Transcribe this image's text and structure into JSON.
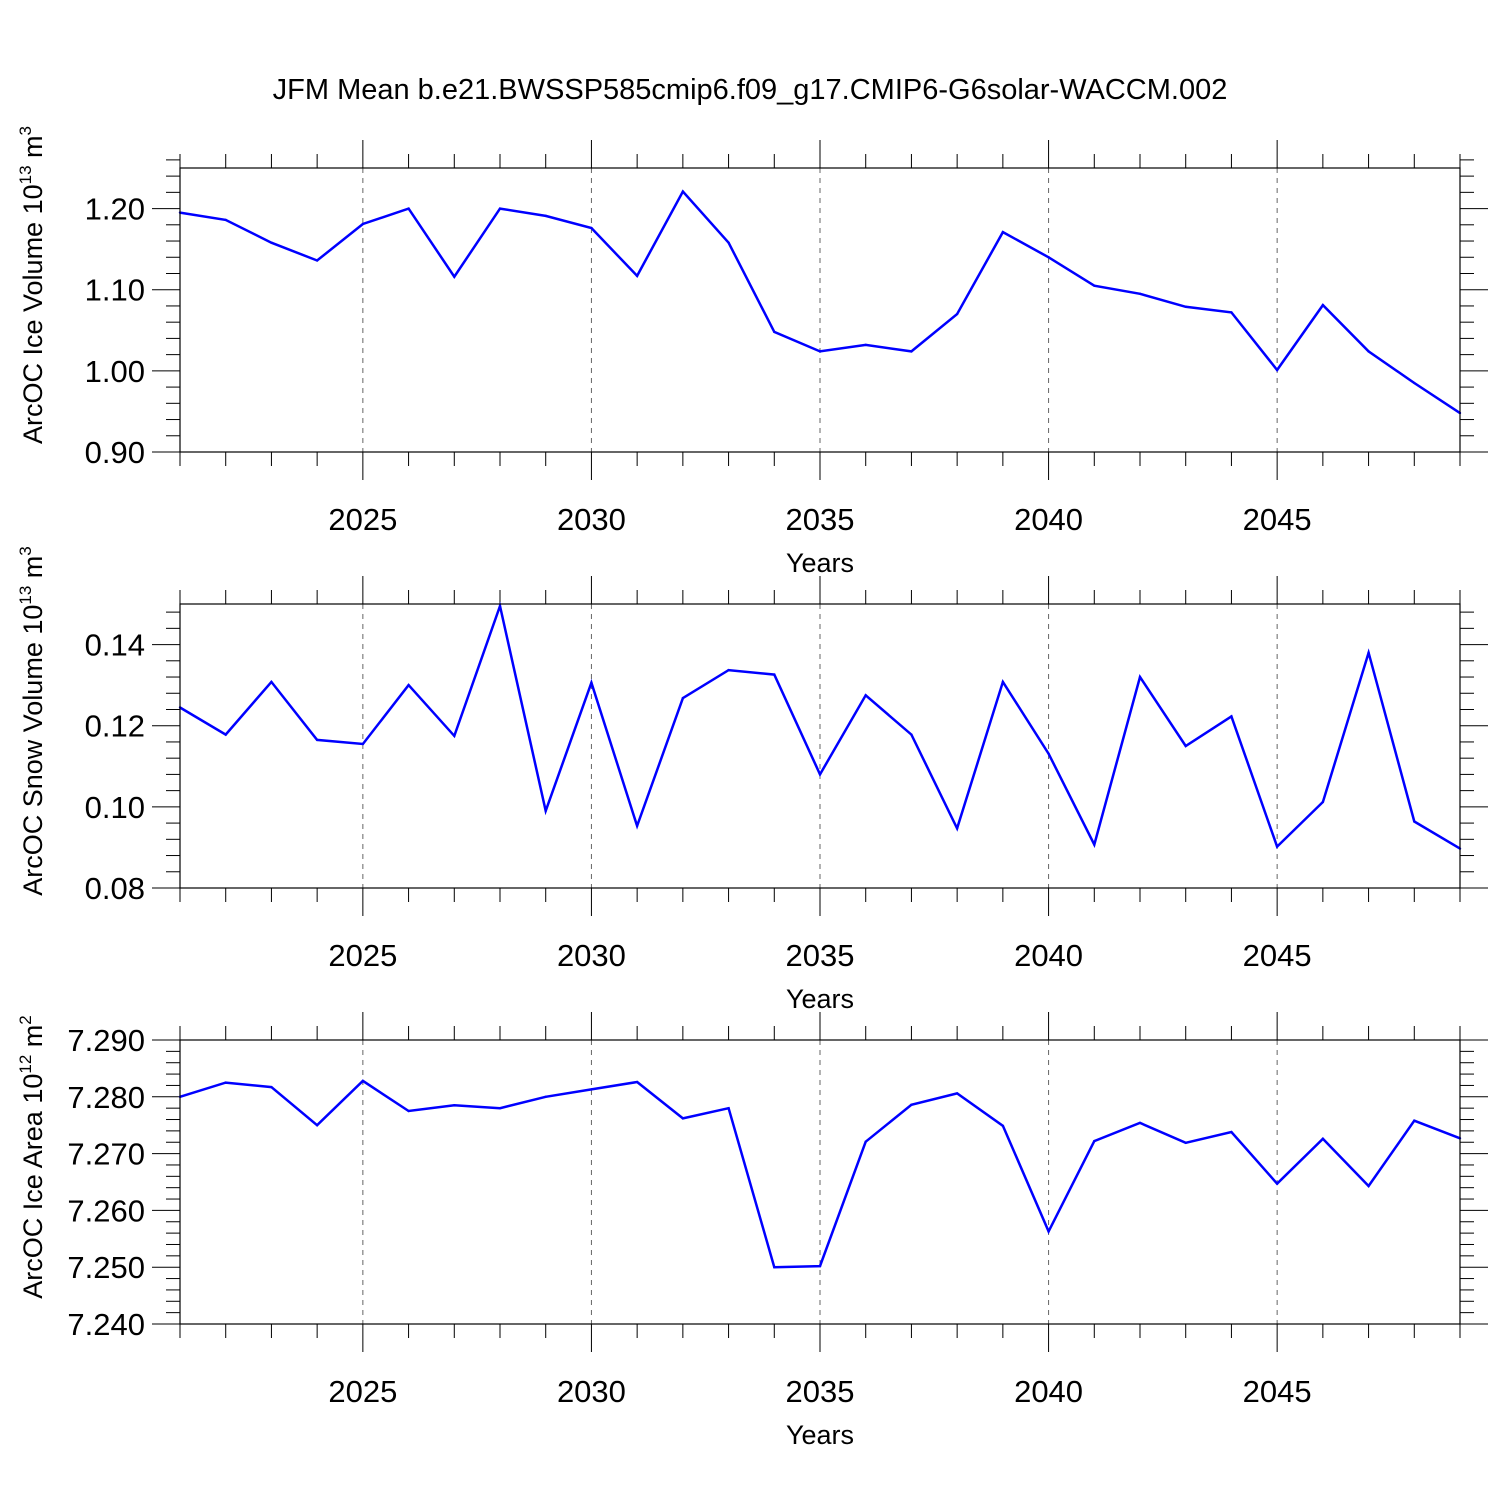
{
  "title": "JFM Mean b.e21.BWSSP585cmip6.f09_g17.CMIP6-G6solar-WACCM.002",
  "line_color": "#0000ff",
  "chart_data": [
    {
      "type": "line",
      "ylabel_main": "ArcOC Ice Volume 10",
      "ylabel_exp": "13",
      "ylabel_unit_base": "m",
      "ylabel_unit_exp": "3",
      "xlabel": "Years",
      "xlim": [
        2021,
        2049
      ],
      "ylim": [
        0.9,
        1.25
      ],
      "x_ticks": [
        2025,
        2030,
        2035,
        2040,
        2045
      ],
      "x_tick_labels": [
        "2025",
        "2030",
        "2035",
        "2040",
        "2045"
      ],
      "y_ticks": [
        0.9,
        1.0,
        1.1,
        1.2
      ],
      "y_tick_labels": [
        "0.90",
        "1.00",
        "1.10",
        "1.20"
      ],
      "y_minor_step": 0.02,
      "x": [
        2021,
        2022,
        2023,
        2024,
        2025,
        2026,
        2027,
        2028,
        2029,
        2030,
        2031,
        2032,
        2033,
        2034,
        2035,
        2036,
        2037,
        2038,
        2039,
        2040,
        2041,
        2042,
        2043,
        2044,
        2045,
        2046,
        2047,
        2048,
        2049
      ],
      "values": [
        1.195,
        1.186,
        1.158,
        1.136,
        1.181,
        1.2,
        1.116,
        1.2,
        1.191,
        1.176,
        1.117,
        1.221,
        1.158,
        1.048,
        1.024,
        1.032,
        1.024,
        1.07,
        1.171,
        1.14,
        1.105,
        1.095,
        1.079,
        1.072,
        1.001,
        1.081,
        1.024,
        0.985,
        0.948
      ]
    },
    {
      "type": "line",
      "ylabel_main": "ArcOC Snow Volume 10",
      "ylabel_exp": "13",
      "ylabel_unit_base": "m",
      "ylabel_unit_exp": "3",
      "xlabel": "Years",
      "xlim": [
        2021,
        2049
      ],
      "ylim": [
        0.08,
        0.15
      ],
      "x_ticks": [
        2025,
        2030,
        2035,
        2040,
        2045
      ],
      "x_tick_labels": [
        "2025",
        "2030",
        "2035",
        "2040",
        "2045"
      ],
      "y_ticks": [
        0.08,
        0.1,
        0.12,
        0.14
      ],
      "y_tick_labels": [
        "0.08",
        "0.10",
        "0.12",
        "0.14"
      ],
      "y_minor_step": 0.004,
      "x": [
        2021,
        2022,
        2023,
        2024,
        2025,
        2026,
        2027,
        2028,
        2029,
        2030,
        2031,
        2032,
        2033,
        2034,
        2035,
        2036,
        2037,
        2038,
        2039,
        2040,
        2041,
        2042,
        2043,
        2044,
        2045,
        2046,
        2047,
        2048,
        2049
      ],
      "values": [
        0.1245,
        0.1178,
        0.1308,
        0.1165,
        0.1155,
        0.13,
        0.1175,
        0.1495,
        0.099,
        0.1306,
        0.0953,
        0.1268,
        0.1337,
        0.1326,
        0.108,
        0.1275,
        0.1178,
        0.0947,
        0.1308,
        0.1131,
        0.0907,
        0.132,
        0.115,
        0.1223,
        0.0902,
        0.1012,
        0.138,
        0.0964,
        0.0897
      ]
    },
    {
      "type": "line",
      "ylabel_main": "ArcOC Ice Area 10",
      "ylabel_exp": "12",
      "ylabel_unit_base": "m",
      "ylabel_unit_exp": "2",
      "xlabel": "Years",
      "xlim": [
        2021,
        2049
      ],
      "ylim": [
        7.24,
        7.29
      ],
      "x_ticks": [
        2025,
        2030,
        2035,
        2040,
        2045
      ],
      "x_tick_labels": [
        "2025",
        "2030",
        "2035",
        "2040",
        "2045"
      ],
      "y_ticks": [
        7.24,
        7.25,
        7.26,
        7.27,
        7.28,
        7.29
      ],
      "y_tick_labels": [
        "7.240",
        "7.250",
        "7.260",
        "7.270",
        "7.280",
        "7.290"
      ],
      "y_minor_step": 0.002,
      "x": [
        2021,
        2022,
        2023,
        2024,
        2025,
        2026,
        2027,
        2028,
        2029,
        2030,
        2031,
        2032,
        2033,
        2034,
        2035,
        2036,
        2037,
        2038,
        2039,
        2040,
        2041,
        2042,
        2043,
        2044,
        2045,
        2046,
        2047,
        2048,
        2049
      ],
      "values": [
        7.28,
        7.2825,
        7.2817,
        7.275,
        7.2828,
        7.2775,
        7.2785,
        7.278,
        7.28,
        7.2813,
        7.2826,
        7.2762,
        7.278,
        7.25,
        7.2502,
        7.2721,
        7.2786,
        7.2806,
        7.2749,
        7.2563,
        7.2722,
        7.2754,
        7.2719,
        7.2738,
        7.2647,
        7.2726,
        7.2643,
        7.2758,
        7.2727
      ]
    }
  ]
}
